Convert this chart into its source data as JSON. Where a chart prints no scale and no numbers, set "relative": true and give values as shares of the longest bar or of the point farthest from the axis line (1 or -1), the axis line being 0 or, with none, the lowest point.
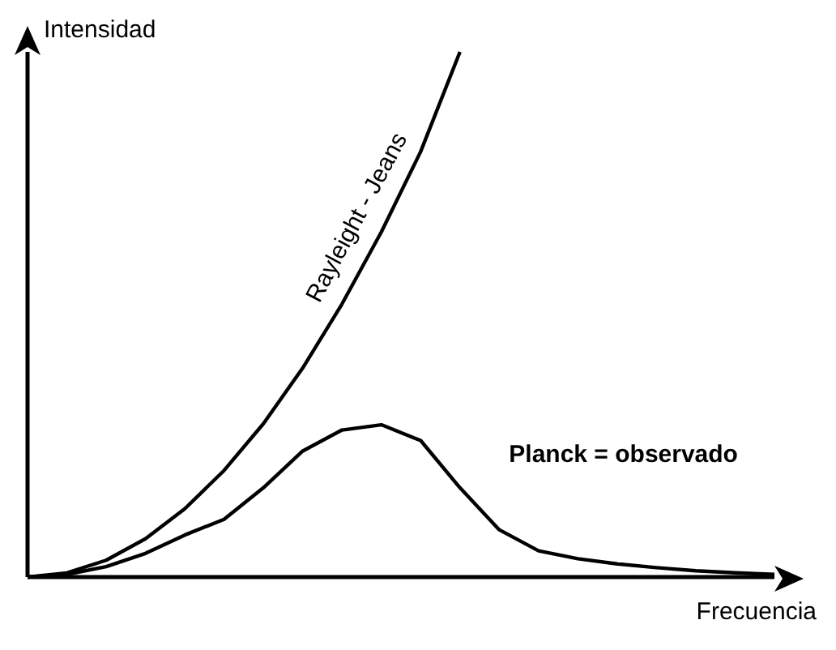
{
  "chart_data": {
    "type": "line",
    "relative": true,
    "xlabel": "Frecuencia",
    "ylabel": "Intensidad",
    "categories": [
      null,
      null,
      null,
      null,
      null,
      null,
      null,
      null,
      null,
      null,
      null,
      null,
      null,
      null,
      null,
      null,
      null,
      null,
      null,
      null
    ],
    "series": [
      {
        "name": "Rayleight - Jeans",
        "color": "#000000",
        "values": [
          0,
          0.008,
          0.032,
          0.073,
          0.13,
          0.203,
          0.292,
          0.398,
          0.52,
          0.657,
          0.81,
          1,
          null,
          null,
          null,
          null,
          null,
          null,
          null,
          null
        ]
      },
      {
        "name": "Planck = observado",
        "color": "#000000",
        "values": [
          0,
          0.005,
          0.02,
          0.045,
          0.08,
          0.11,
          0.17,
          0.24,
          0.28,
          0.29,
          0.26,
          0.17,
          0.09,
          0.05,
          0.035,
          0.025,
          0.018,
          0.012,
          0.008,
          0.005
        ]
      }
    ],
    "legend": false,
    "grid": false,
    "marker": "none",
    "line_style": "solid"
  }
}
